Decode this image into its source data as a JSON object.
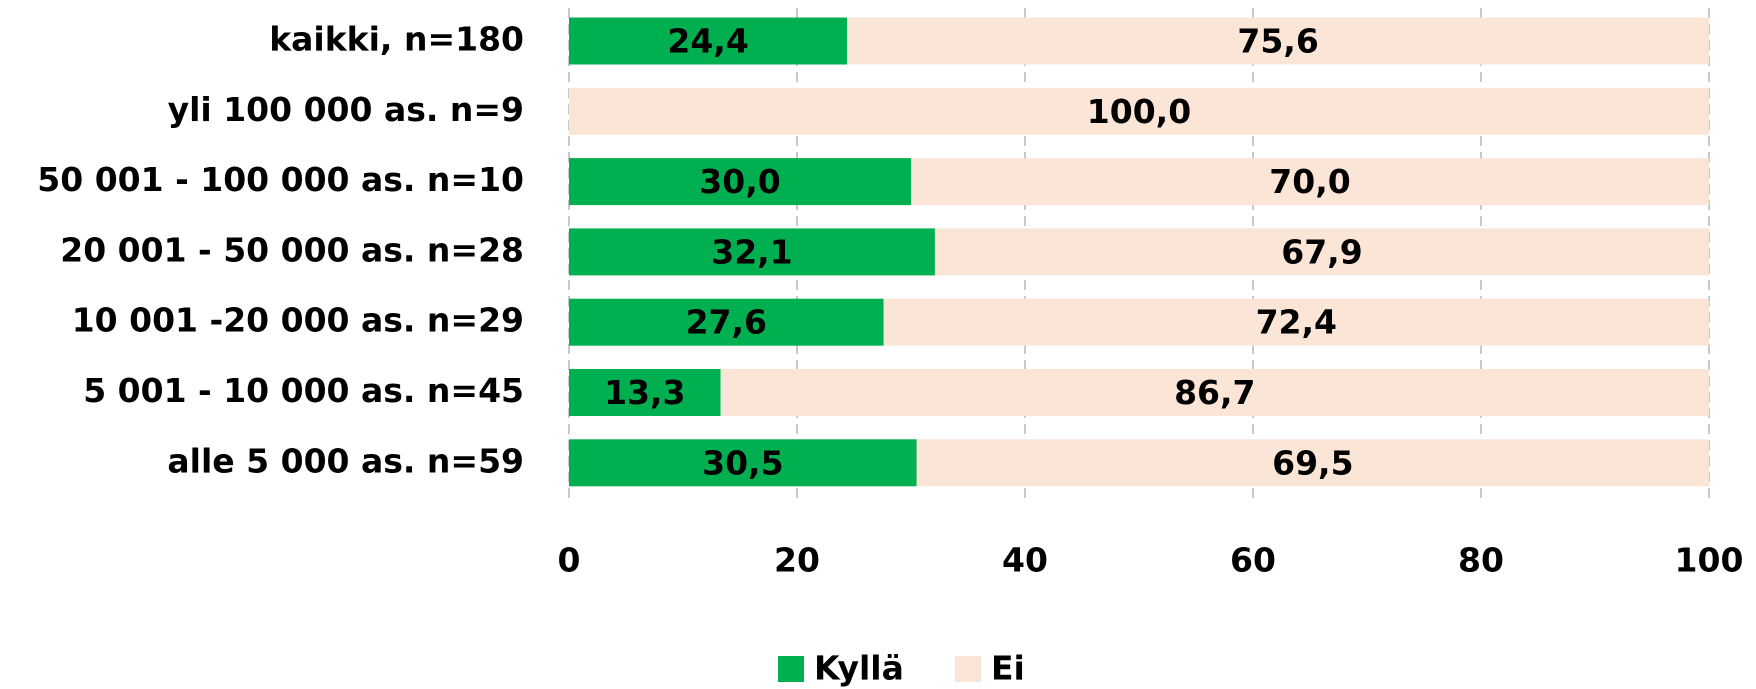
{
  "chart_data": {
    "type": "stacked_barh",
    "categories": [
      "kaikki, n=180",
      "yli 100 000 as. n=9",
      "50 001 - 100 000 as. n=10",
      "20 001 - 50 000 as. n=28",
      "10 001 -20 000 as. n=29",
      "5 001 - 10 000 as. n=45",
      "alle 5 000 as. n=59"
    ],
    "series": [
      {
        "name": "Kyllä",
        "color": "#00b050",
        "values": [
          24.4,
          0,
          30.0,
          32.1,
          27.6,
          13.3,
          30.5
        ],
        "value_labels": [
          "24,4",
          null,
          "30,0",
          "32,1",
          "27,6",
          "13,3",
          "30,5"
        ]
      },
      {
        "name": "Ei",
        "color": "#fbe5d6",
        "values": [
          75.6,
          100.0,
          70.0,
          67.9,
          72.4,
          86.7,
          69.5
        ],
        "value_labels": [
          "75,6",
          "100,0",
          "70,0",
          "67,9",
          "72,4",
          "86,7",
          "69,5"
        ]
      }
    ],
    "xlim": [
      0,
      100
    ],
    "xticks": [
      0,
      20,
      40,
      60,
      80,
      100
    ],
    "grid": true,
    "legend": "bottom"
  }
}
